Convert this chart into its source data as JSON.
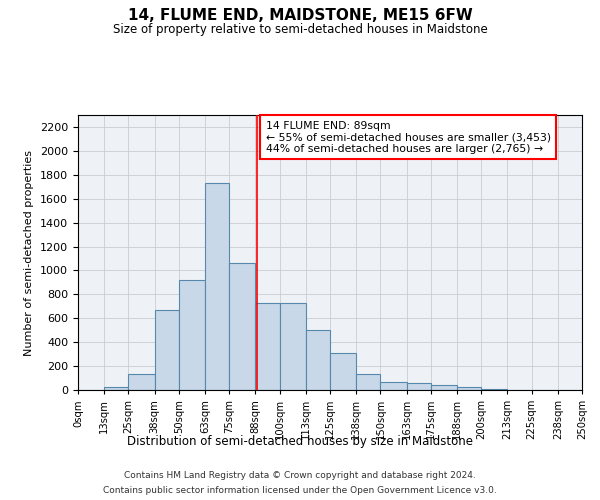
{
  "title": "14, FLUME END, MAIDSTONE, ME15 6FW",
  "subtitle": "Size of property relative to semi-detached houses in Maidstone",
  "xlabel": "Distribution of semi-detached houses by size in Maidstone",
  "ylabel": "Number of semi-detached properties",
  "footer_line1": "Contains HM Land Registry data © Crown copyright and database right 2024.",
  "footer_line2": "Contains public sector information licensed under the Open Government Licence v3.0.",
  "property_size": 89,
  "property_label": "14 FLUME END: 89sqm",
  "pct_smaller": 55,
  "pct_larger": 44,
  "count_smaller": 3453,
  "count_larger": 2765,
  "bin_edges": [
    0,
    13,
    25,
    38,
    50,
    63,
    75,
    88,
    100,
    113,
    125,
    138,
    150,
    163,
    175,
    188,
    200,
    213,
    225,
    238,
    250
  ],
  "bin_labels": [
    "0sqm",
    "13sqm",
    "25sqm",
    "38sqm",
    "50sqm",
    "63sqm",
    "75sqm",
    "88sqm",
    "100sqm",
    "113sqm",
    "125sqm",
    "138sqm",
    "150sqm",
    "163sqm",
    "175sqm",
    "188sqm",
    "200sqm",
    "213sqm",
    "225sqm",
    "238sqm",
    "250sqm"
  ],
  "bar_heights": [
    0,
    25,
    130,
    670,
    920,
    1730,
    1060,
    730,
    730,
    500,
    310,
    130,
    70,
    55,
    40,
    25,
    10,
    0,
    0,
    0
  ],
  "bar_color": "#c8d8e8",
  "bar_edgecolor": "#5588aa",
  "redline_x": 89,
  "ylim": [
    0,
    2300
  ],
  "yticks": [
    0,
    200,
    400,
    600,
    800,
    1000,
    1200,
    1400,
    1600,
    1800,
    2000,
    2200
  ],
  "bg_color": "#eef2f7",
  "grid_color": "#cccccc",
  "annotation_box_edgecolor": "red",
  "annotation_box_facecolor": "white"
}
